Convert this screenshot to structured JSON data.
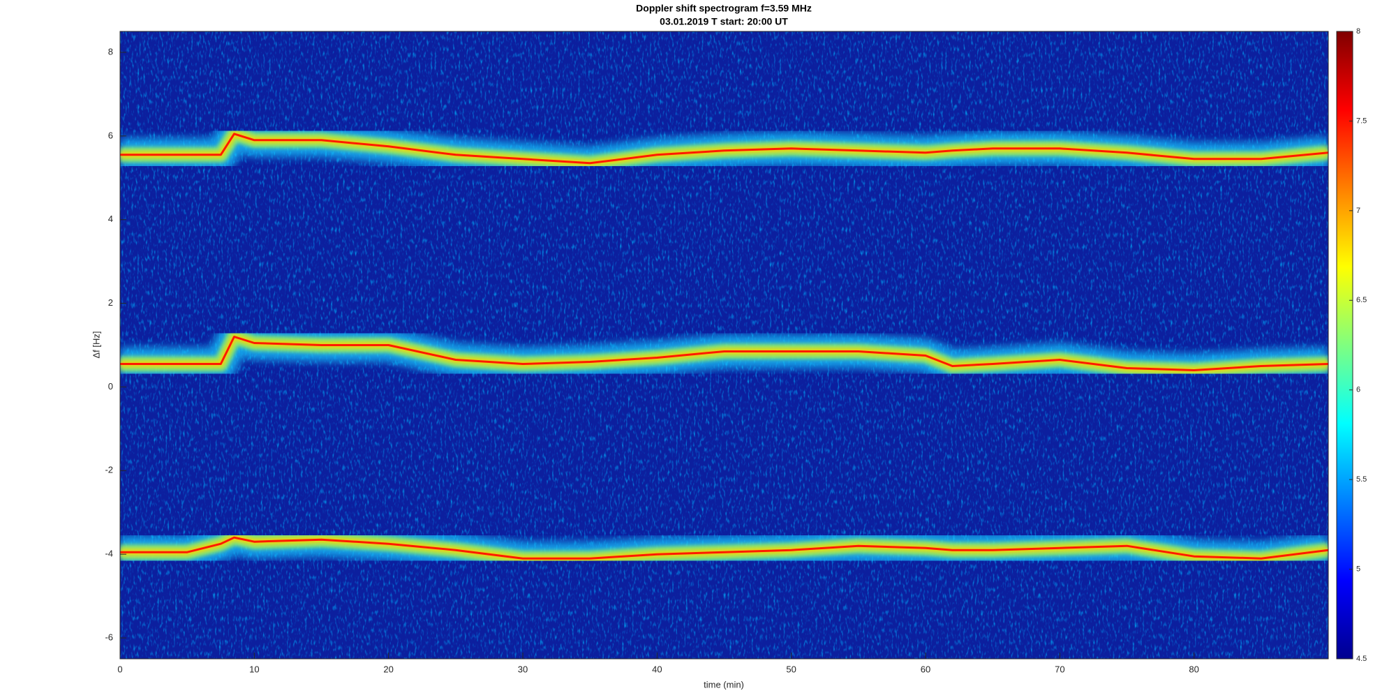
{
  "chart_data": {
    "type": "spectrogram",
    "title": "Doppler shift spectrogram f=3.59 MHz",
    "subtitle": "03.01.2019   T start: 20:00 UT",
    "x_label": "time (min)",
    "y_label": "Δf [Hz]",
    "xlim": [
      0,
      90
    ],
    "ylim": [
      -6.5,
      8.5
    ],
    "xticks": [
      0,
      10,
      20,
      30,
      40,
      50,
      60,
      70,
      80
    ],
    "yticks": [
      -6,
      -4,
      -2,
      0,
      2,
      4,
      6,
      8
    ],
    "background_color": "#0c1f9e",
    "x": [
      0,
      5,
      7.5,
      8.5,
      10,
      15,
      20,
      25,
      30,
      35,
      40,
      45,
      50,
      55,
      60,
      62,
      65,
      70,
      75,
      80,
      85,
      90
    ],
    "series": [
      {
        "color": "#ff1a00",
        "values": [
          5.55,
          5.55,
          5.55,
          6.05,
          5.9,
          5.9,
          5.75,
          5.55,
          5.45,
          5.35,
          5.55,
          5.65,
          5.7,
          5.65,
          5.6,
          5.65,
          5.7,
          5.7,
          5.6,
          5.45,
          5.45,
          5.6
        ]
      },
      {
        "color": "#ff1a00",
        "values": [
          0.55,
          0.55,
          0.55,
          1.2,
          1.05,
          1.0,
          1.0,
          0.65,
          0.55,
          0.6,
          0.7,
          0.85,
          0.85,
          0.85,
          0.75,
          0.5,
          0.55,
          0.65,
          0.45,
          0.4,
          0.5,
          0.55
        ]
      },
      {
        "color": "#ff1a00",
        "values": [
          -3.95,
          -3.95,
          -3.75,
          -3.6,
          -3.7,
          -3.65,
          -3.75,
          -3.9,
          -4.1,
          -4.1,
          -4.0,
          -3.95,
          -3.9,
          -3.8,
          -3.85,
          -3.9,
          -3.9,
          -3.85,
          -3.8,
          -4.05,
          -4.1,
          -3.9
        ]
      }
    ],
    "colorbar": {
      "lim": [
        4.5,
        8
      ],
      "ticks": [
        4.5,
        5,
        5.5,
        6,
        6.5,
        7,
        7.5,
        8
      ],
      "colormap": "jet"
    }
  }
}
